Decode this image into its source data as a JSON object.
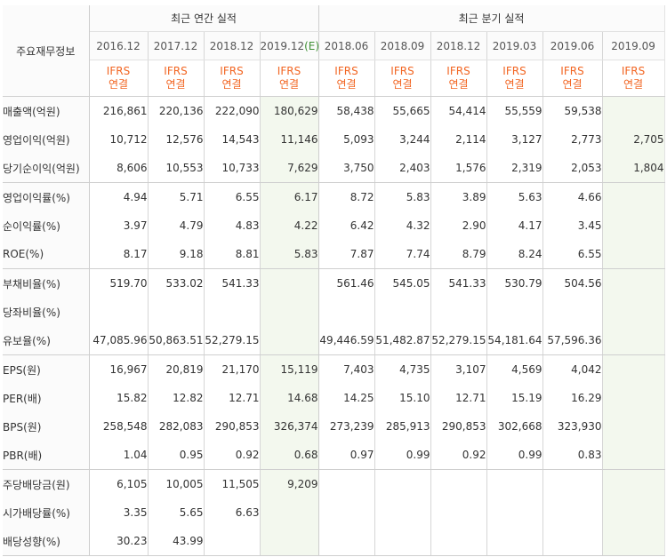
{
  "headers": {
    "corner": "주요재무정보",
    "annual_group": "최근 연간 실적",
    "quarter_group": "최근 분기 실적",
    "periods": [
      "2016.12",
      "2017.12",
      "2018.12",
      "2019.12",
      "2018.06",
      "2018.09",
      "2018.12",
      "2019.03",
      "2019.06",
      "2019.09"
    ],
    "estimate_suffix": "(E)",
    "ifrs_line1": "IFRS",
    "ifrs_line2": "연결"
  },
  "rows": [
    {
      "label": "매출액(억원)",
      "values": [
        "216,861",
        "220,136",
        "222,090",
        "180,629",
        "58,438",
        "55,665",
        "54,414",
        "55,559",
        "59,538",
        ""
      ]
    },
    {
      "label": "영업이익(억원)",
      "values": [
        "10,712",
        "12,576",
        "14,543",
        "11,146",
        "5,093",
        "3,244",
        "2,114",
        "3,127",
        "2,773",
        "2,705"
      ]
    },
    {
      "label": "당기순이익(억원)",
      "values": [
        "8,606",
        "10,553",
        "10,733",
        "7,629",
        "3,750",
        "2,403",
        "1,576",
        "2,319",
        "2,053",
        "1,804"
      ]
    },
    {
      "label": "영업이익률(%)",
      "values": [
        "4.94",
        "5.71",
        "6.55",
        "6.17",
        "8.72",
        "5.83",
        "3.89",
        "5.63",
        "4.66",
        ""
      ]
    },
    {
      "label": "순이익률(%)",
      "values": [
        "3.97",
        "4.79",
        "4.83",
        "4.22",
        "6.42",
        "4.32",
        "2.90",
        "4.17",
        "3.45",
        ""
      ]
    },
    {
      "label": "ROE(%)",
      "values": [
        "8.17",
        "9.18",
        "8.81",
        "5.83",
        "7.87",
        "7.74",
        "8.79",
        "8.24",
        "6.55",
        ""
      ]
    },
    {
      "label": "부채비율(%)",
      "values": [
        "519.70",
        "533.02",
        "541.33",
        "",
        "561.46",
        "545.05",
        "541.33",
        "530.79",
        "504.56",
        ""
      ]
    },
    {
      "label": "당좌비율(%)",
      "values": [
        "",
        "",
        "",
        "",
        "",
        "",
        "",
        "",
        "",
        ""
      ]
    },
    {
      "label": "유보율(%)",
      "values": [
        "47,085.96",
        "50,863.51",
        "52,279.15",
        "",
        "49,446.59",
        "51,482.87",
        "52,279.15",
        "54,181.64",
        "57,596.36",
        ""
      ]
    },
    {
      "label": "EPS(원)",
      "values": [
        "16,967",
        "20,819",
        "21,170",
        "15,119",
        "7,403",
        "4,735",
        "3,107",
        "4,569",
        "4,042",
        ""
      ]
    },
    {
      "label": "PER(배)",
      "values": [
        "15.82",
        "12.82",
        "12.71",
        "14.68",
        "14.25",
        "15.10",
        "12.71",
        "15.19",
        "16.29",
        ""
      ]
    },
    {
      "label": "BPS(원)",
      "values": [
        "258,548",
        "282,083",
        "290,853",
        "326,374",
        "273,239",
        "285,913",
        "290,853",
        "302,668",
        "323,930",
        ""
      ]
    },
    {
      "label": "PBR(배)",
      "values": [
        "1.04",
        "0.95",
        "0.92",
        "0.68",
        "0.97",
        "0.99",
        "0.92",
        "0.99",
        "0.83",
        ""
      ]
    },
    {
      "label": "주당배당금(원)",
      "values": [
        "6,105",
        "10,005",
        "11,505",
        "9,209",
        "",
        "",
        "",
        "",
        "",
        ""
      ]
    },
    {
      "label": "시가배당률(%)",
      "values": [
        "3.35",
        "5.65",
        "6.63",
        "",
        "",
        "",
        "",
        "",
        "",
        ""
      ]
    },
    {
      "label": "배당성향(%)",
      "values": [
        "30.23",
        "43.99",
        "",
        "",
        "",
        "",
        "",
        "",
        "",
        ""
      ]
    }
  ]
}
